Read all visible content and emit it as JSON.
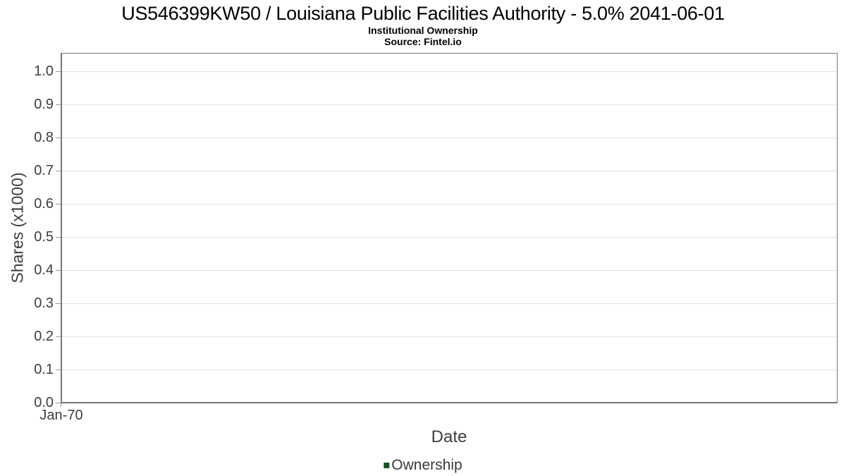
{
  "chart_data": {
    "type": "line",
    "title": "US546399KW50 / Louisiana Public Facilities Authority - 5.0% 2041-06-01",
    "subtitle": "Institutional Ownership",
    "source": "Source: Fintel.io",
    "xlabel": "Date",
    "ylabel": "Shares (x1000)",
    "x_ticks": [
      "Jan-70"
    ],
    "y_ticks": [
      "0.0",
      "0.1",
      "0.2",
      "0.3",
      "0.4",
      "0.5",
      "0.6",
      "0.7",
      "0.8",
      "0.9",
      "1.0"
    ],
    "ylim": [
      0.0,
      1.055
    ],
    "grid": true,
    "legend_position": "bottom-center",
    "series": [
      {
        "name": "Ownership",
        "color": "#1d4e2a",
        "marker": "square",
        "values": []
      }
    ],
    "colors": {
      "gridline": "#e2e2e2",
      "tick": "#9a9a9a",
      "plot_border": "#777777",
      "axis_text": "#3d3d3d",
      "title_text": "#000000",
      "background": "#ffffff"
    }
  }
}
